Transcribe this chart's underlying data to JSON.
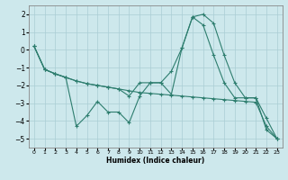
{
  "xlabel": "Humidex (Indice chaleur)",
  "bg_color": "#cde8ec",
  "grid_color": "#aacdd4",
  "line_color": "#2d7d6e",
  "xlim": [
    -0.5,
    23.5
  ],
  "ylim": [
    -5.5,
    2.5
  ],
  "yticks": [
    -5,
    -4,
    -3,
    -2,
    -1,
    0,
    1,
    2
  ],
  "xticks": [
    0,
    1,
    2,
    3,
    4,
    5,
    6,
    7,
    8,
    9,
    10,
    11,
    12,
    13,
    14,
    15,
    16,
    17,
    18,
    19,
    20,
    21,
    22,
    23
  ],
  "line1_x": [
    0,
    1,
    2,
    3,
    4,
    5,
    6,
    7,
    8,
    9,
    10,
    11,
    12,
    13,
    14,
    15,
    16,
    17,
    18,
    19,
    20,
    21,
    22,
    23
  ],
  "line1_y": [
    0.2,
    -1.1,
    -1.35,
    -1.55,
    -4.3,
    -3.7,
    -2.9,
    -3.5,
    -3.5,
    -4.1,
    -2.6,
    -1.85,
    -1.85,
    -1.2,
    0.1,
    1.85,
    2.0,
    1.5,
    -0.3,
    -1.85,
    -2.7,
    -2.7,
    -3.85,
    -5.0
  ],
  "line2_x": [
    0,
    1,
    2,
    3,
    4,
    5,
    6,
    7,
    8,
    9,
    10,
    11,
    12,
    13,
    14,
    15,
    16,
    17,
    18,
    19,
    20,
    21,
    22,
    23
  ],
  "line2_y": [
    0.2,
    -1.1,
    -1.35,
    -1.55,
    -1.75,
    -1.9,
    -2.0,
    -2.1,
    -2.2,
    -2.3,
    -2.4,
    -2.45,
    -2.5,
    -2.55,
    -2.6,
    -2.65,
    -2.7,
    -2.75,
    -2.8,
    -2.85,
    -2.9,
    -2.95,
    -4.3,
    -5.0
  ],
  "line3_x": [
    0,
    1,
    2,
    3,
    4,
    5,
    6,
    7,
    8,
    9,
    10,
    11,
    12,
    13,
    14,
    15,
    16,
    17,
    18,
    19,
    20,
    21,
    22,
    23
  ],
  "line3_y": [
    0.2,
    -1.1,
    -1.35,
    -1.55,
    -1.75,
    -1.9,
    -2.0,
    -2.1,
    -2.2,
    -2.6,
    -1.85,
    -1.85,
    -1.85,
    -2.5,
    0.1,
    1.85,
    1.4,
    -0.3,
    -1.85,
    -2.7,
    -2.7,
    -2.7,
    -4.5,
    -5.0
  ]
}
